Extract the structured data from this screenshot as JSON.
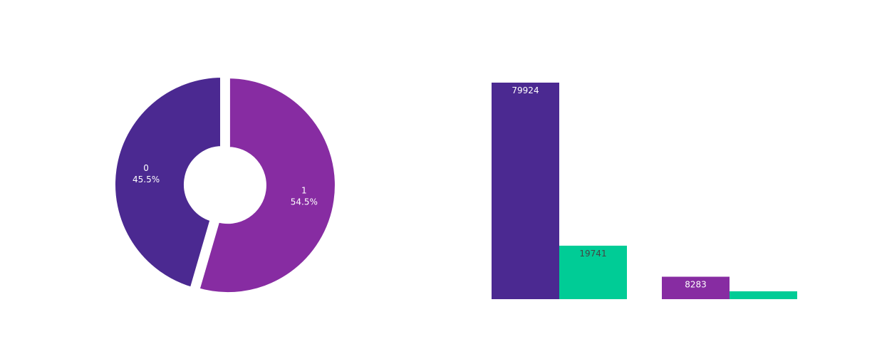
{
  "chart_data": [
    {
      "type": "pie",
      "hole": true,
      "slices": [
        {
          "label": "0",
          "percent_label": "45.5%",
          "value": 45.5,
          "color": "#4b2991",
          "pulled": false
        },
        {
          "label": "1",
          "percent_label": "54.5%",
          "value": 54.5,
          "color": "#872ca2",
          "pulled": true
        }
      ]
    },
    {
      "type": "bar",
      "groups": [
        {
          "bars": [
            {
              "value": 79924,
              "label": "79924",
              "color": "#4b2991",
              "label_color": "#ffffff"
            },
            {
              "value": 19741,
              "label": "19741",
              "color": "#00cc96",
              "label_color": "#444444"
            }
          ]
        },
        {
          "bars": [
            {
              "value": 8283,
              "label": "8283",
              "color": "#872ca2",
              "label_color": "#ffffff"
            },
            {
              "value": 2900,
              "label": "",
              "color": "#00cc96",
              "label_color": "#444444"
            }
          ]
        }
      ],
      "ylim": [
        0,
        79924
      ]
    }
  ]
}
